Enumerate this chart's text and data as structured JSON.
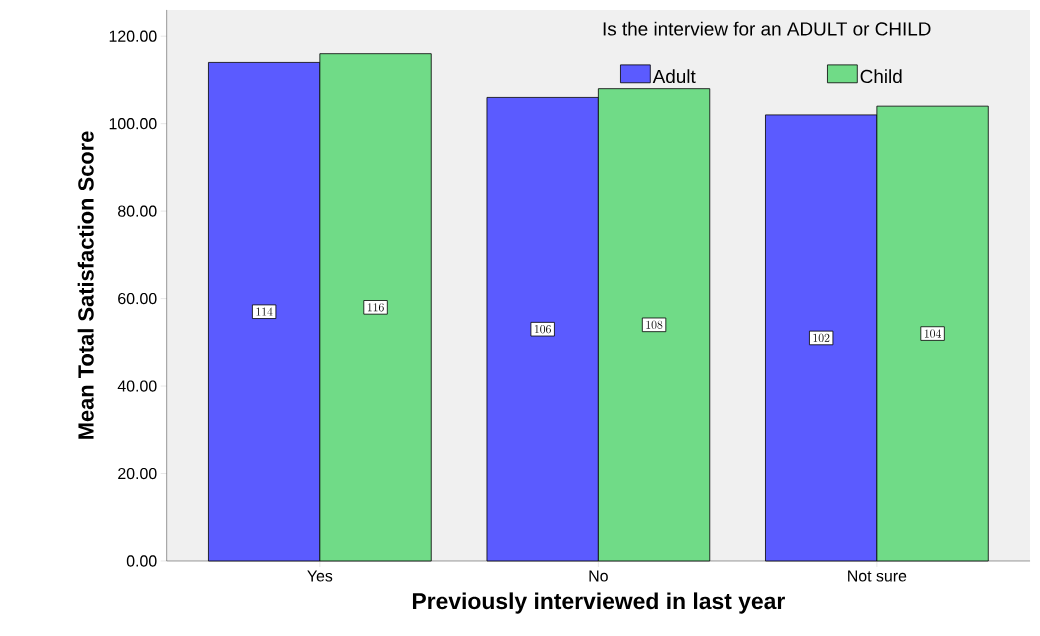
{
  "chart_data": {
    "type": "bar",
    "xlabel": "Previously interviewed in last year",
    "ylabel": "Mean Total Satisfaction Score",
    "legend_title": "Is the interview for an ADULT or CHILD",
    "categories": [
      "Yes",
      "No",
      "Not sure"
    ],
    "series": [
      {
        "name": "Adult",
        "color": "#5b5bff",
        "values": [
          114,
          106,
          102
        ]
      },
      {
        "name": "Child",
        "color": "#70db87",
        "values": [
          116,
          108,
          104
        ]
      }
    ],
    "ylim": [
      0,
      126
    ],
    "yticks": [
      {
        "value": 0,
        "label": "0.00"
      },
      {
        "value": 20,
        "label": "20.00"
      },
      {
        "value": 40,
        "label": "40.00"
      },
      {
        "value": 60,
        "label": "60.00"
      },
      {
        "value": 80,
        "label": "80.00"
      },
      {
        "value": 100,
        "label": "100.00"
      },
      {
        "value": 120,
        "label": "120.00"
      }
    ],
    "data_labels": true,
    "legend": "top right"
  }
}
